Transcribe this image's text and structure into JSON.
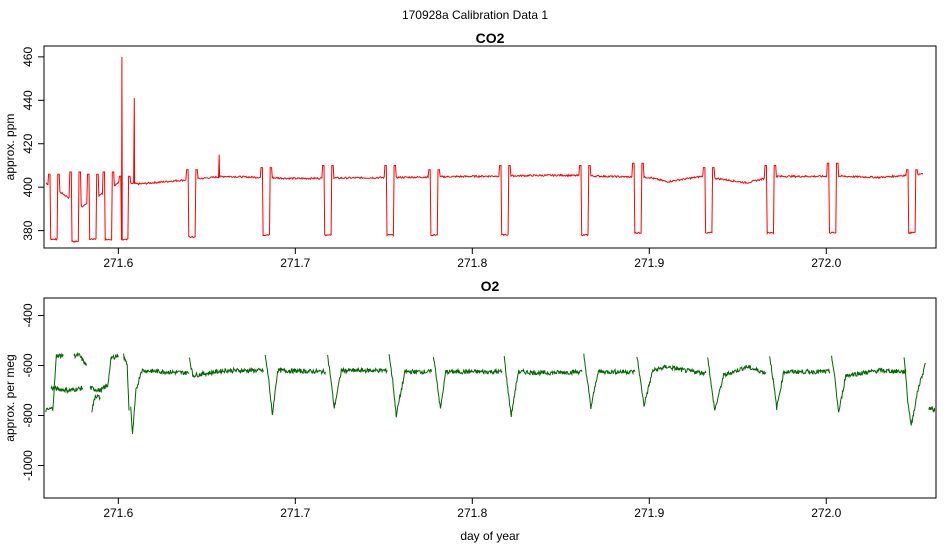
{
  "suptitle": "170928a   Calibration Data 1",
  "colors": {
    "co2": "#ff0000",
    "o2": "#006400",
    "axis": "#000000"
  },
  "chart_data": [
    {
      "type": "line",
      "title": "CO2",
      "xlabel": "",
      "ylabel": "approx. ppm",
      "xlim": [
        271.558,
        272.062
      ],
      "ylim": [
        372,
        465
      ],
      "xticks": [
        271.6,
        271.7,
        271.8,
        271.9,
        272.0
      ],
      "xtick_labels": [
        "271.6",
        "271.7",
        "271.8",
        "271.9",
        "272.0"
      ],
      "yticks": [
        380,
        400,
        420,
        440,
        460
      ],
      "ytick_labels": [
        "380",
        "400",
        "420",
        "440",
        "460"
      ],
      "grid": false,
      "series": [
        {
          "color": "#ff0000",
          "baseline": [
            [
              271.559,
              402
            ],
            [
              271.58,
              391
            ],
            [
              271.6,
              402
            ],
            [
              271.612,
              401.5
            ],
            [
              271.64,
              403.5
            ],
            [
              271.66,
              405
            ],
            [
              271.7,
              404
            ],
            [
              271.76,
              404.5
            ],
            [
              271.8,
              405
            ],
            [
              271.85,
              405.5
            ],
            [
              271.9,
              404.5
            ],
            [
              271.91,
              402.5
            ],
            [
              271.93,
              405
            ],
            [
              271.955,
              402
            ],
            [
              271.97,
              405
            ],
            [
              272.01,
              405
            ],
            [
              272.03,
              404.5
            ],
            [
              272.053,
              406
            ]
          ],
          "calibration_cycles": [
            {
              "x": 271.563,
              "low": 376,
              "high": 406
            },
            {
              "x": 271.575,
              "low": 375,
              "high": 407
            },
            {
              "x": 271.585,
              "low": 376,
              "high": 406
            },
            {
              "x": 271.594,
              "low": 376,
              "high": 407
            },
            {
              "x": 271.603,
              "low": 376,
              "high": 405
            },
            {
              "x": 271.641,
              "low": 377,
              "high": 408
            },
            {
              "x": 271.683,
              "low": 378,
              "high": 409
            },
            {
              "x": 271.718,
              "low": 378,
              "high": 410
            },
            {
              "x": 271.753,
              "low": 378,
              "high": 410
            },
            {
              "x": 271.778,
              "low": 378,
              "high": 408
            },
            {
              "x": 271.818,
              "low": 378,
              "high": 410
            },
            {
              "x": 271.863,
              "low": 378,
              "high": 410
            },
            {
              "x": 271.893,
              "low": 379,
              "high": 411
            },
            {
              "x": 271.933,
              "low": 379,
              "high": 409
            },
            {
              "x": 271.968,
              "low": 379,
              "high": 410
            },
            {
              "x": 272.003,
              "low": 379,
              "high": 411
            },
            {
              "x": 272.048,
              "low": 379,
              "high": 408
            }
          ],
          "spikes": [
            {
              "x": 271.602,
              "value": 460
            },
            {
              "x": 271.609,
              "value": 441
            },
            {
              "x": 271.657,
              "value": 415
            }
          ]
        }
      ]
    },
    {
      "type": "line",
      "title": "O2",
      "xlabel": "day of year",
      "ylabel": "approx. per meg",
      "xlim": [
        271.558,
        272.062
      ],
      "ylim": [
        -1130,
        -330
      ],
      "xticks": [
        271.6,
        271.7,
        271.8,
        271.9,
        272.0
      ],
      "xtick_labels": [
        "271.6",
        "271.7",
        "271.8",
        "271.9",
        "272.0"
      ],
      "yticks": [
        -1000,
        -800,
        -600,
        -400
      ],
      "ytick_labels": [
        "-1000",
        "-800",
        "-600",
        "-400"
      ],
      "grid": false,
      "series": [
        {
          "color": "#006400",
          "segments": [
            {
              "points": [
                [
                  271.559,
                  -780
                ],
                [
                  271.563,
                  -770
                ],
                [
                  271.565,
                  -560
                ],
                [
                  271.569,
                  -560
                ]
              ]
            },
            {
              "points": [
                [
                  271.562,
                  -690
                ],
                [
                  271.572,
                  -700
                ],
                [
                  271.58,
                  -690
                ]
              ]
            },
            {
              "points": [
                [
                  271.575,
                  -560
                ],
                [
                  271.578,
                  -560
                ],
                [
                  271.582,
                  -600
                ]
              ]
            },
            {
              "points": [
                [
                  271.584,
                  -690
                ],
                [
                  271.59,
                  -700
                ],
                [
                  271.594,
                  -680
                ],
                [
                  271.596,
                  -570
                ],
                [
                  271.6,
                  -560
                ]
              ]
            },
            {
              "points": [
                [
                  271.585,
                  -780
                ],
                [
                  271.587,
                  -720
                ],
                [
                  271.59,
                  -730
                ]
              ]
            },
            {
              "points": [
                [
                  271.603,
                  -560
                ],
                [
                  271.605,
                  -600
                ],
                [
                  271.606,
                  -780
                ]
              ]
            },
            {
              "points": [
                [
                  271.607,
                  -760
                ],
                [
                  271.608,
                  -880
                ],
                [
                  271.61,
                  -700
                ],
                [
                  271.613,
                  -620
                ],
                [
                  271.64,
                  -630
                ]
              ]
            },
            {
              "points": [
                [
                  271.64,
                  -560
                ],
                [
                  271.642,
                  -640
                ],
                [
                  271.66,
                  -620
                ],
                [
                  271.682,
                  -620
                ]
              ]
            },
            {
              "points": [
                [
                  271.683,
                  -560
                ],
                [
                  271.685,
                  -660
                ],
                [
                  271.687,
                  -800
                ],
                [
                  271.69,
                  -620
                ],
                [
                  271.717,
                  -625
                ]
              ]
            },
            {
              "points": [
                [
                  271.718,
                  -550
                ],
                [
                  271.72,
                  -650
                ],
                [
                  271.722,
                  -770
                ],
                [
                  271.726,
                  -620
                ],
                [
                  271.752,
                  -620
                ]
              ]
            },
            {
              "points": [
                [
                  271.753,
                  -555
                ],
                [
                  271.755,
                  -660
                ],
                [
                  271.757,
                  -800
                ],
                [
                  271.762,
                  -625
                ],
                [
                  271.777,
                  -625
                ]
              ]
            },
            {
              "points": [
                [
                  271.778,
                  -560
                ],
                [
                  271.78,
                  -660
                ],
                [
                  271.782,
                  -775
                ],
                [
                  271.785,
                  -625
                ],
                [
                  271.817,
                  -625
                ]
              ]
            },
            {
              "points": [
                [
                  271.818,
                  -565
                ],
                [
                  271.82,
                  -690
                ],
                [
                  271.822,
                  -800
                ],
                [
                  271.826,
                  -625
                ],
                [
                  271.84,
                  -630
                ],
                [
                  271.862,
                  -625
                ]
              ]
            },
            {
              "points": [
                [
                  271.863,
                  -560
                ],
                [
                  271.865,
                  -660
                ],
                [
                  271.867,
                  -770
                ],
                [
                  271.871,
                  -625
                ],
                [
                  271.892,
                  -625
                ]
              ]
            },
            {
              "points": [
                [
                  271.893,
                  -560
                ],
                [
                  271.895,
                  -660
                ],
                [
                  271.897,
                  -760
                ],
                [
                  271.902,
                  -620
                ],
                [
                  271.91,
                  -605
                ],
                [
                  271.92,
                  -620
                ],
                [
                  271.932,
                  -630
                ]
              ]
            },
            {
              "points": [
                [
                  271.933,
                  -560
                ],
                [
                  271.935,
                  -680
                ],
                [
                  271.937,
                  -780
                ],
                [
                  271.942,
                  -640
                ],
                [
                  271.955,
                  -605
                ],
                [
                  271.966,
                  -630
                ]
              ]
            },
            {
              "points": [
                [
                  271.968,
                  -560
                ],
                [
                  271.97,
                  -660
                ],
                [
                  271.972,
                  -770
                ],
                [
                  271.976,
                  -625
                ],
                [
                  272.002,
                  -625
                ]
              ]
            },
            {
              "points": [
                [
                  272.003,
                  -560
                ],
                [
                  272.005,
                  -660
                ],
                [
                  272.007,
                  -790
                ],
                [
                  272.011,
                  -640
                ],
                [
                  272.03,
                  -620
                ],
                [
                  272.045,
                  -625
                ]
              ]
            },
            {
              "points": [
                [
                  272.044,
                  -560
                ],
                [
                  272.046,
                  -740
                ],
                [
                  272.048,
                  -840
                ],
                [
                  272.052,
                  -690
                ],
                [
                  272.055,
                  -620
                ],
                [
                  272.056,
                  -590
                ]
              ]
            },
            {
              "points": [
                [
                  272.058,
                  -770
                ],
                [
                  272.062,
                  -780
                ]
              ]
            }
          ]
        }
      ]
    }
  ]
}
